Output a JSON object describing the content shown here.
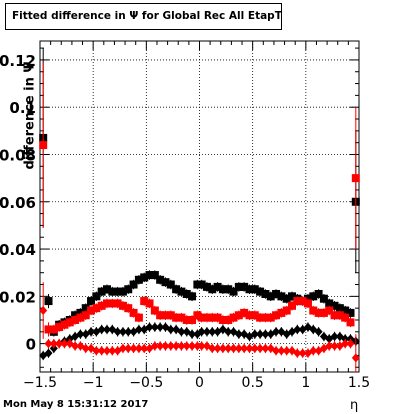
{
  "chart_data": {
    "type": "scatter",
    "title": "Fitted difference in  Ψ   for Global Rec All EtapT",
    "xlabel": "η",
    "ylabel": "difference in Ψ",
    "xlim": [
      -1.5,
      1.5
    ],
    "ylim": [
      -0.012,
      0.128
    ],
    "xticks": [
      "−1.5",
      "−1",
      "−0.5",
      "0",
      "0.5",
      "1",
      "1.5"
    ],
    "xtick_values": [
      -1.5,
      -1,
      -0.5,
      0,
      0.5,
      1,
      1.5
    ],
    "yticks": [
      "0",
      "0.02",
      "0.04",
      "0.06",
      "0.08",
      "0.1",
      "0.12"
    ],
    "ytick_values": [
      0,
      0.02,
      0.04,
      0.06,
      0.08,
      0.1,
      0.12
    ],
    "grid": true,
    "colors": {
      "black": "#000000",
      "red": "#ff0000"
    },
    "x": [
      -1.47,
      -1.42,
      -1.37,
      -1.32,
      -1.27,
      -1.22,
      -1.17,
      -1.12,
      -1.07,
      -1.02,
      -0.97,
      -0.92,
      -0.87,
      -0.82,
      -0.77,
      -0.72,
      -0.67,
      -0.62,
      -0.57,
      -0.52,
      -0.47,
      -0.42,
      -0.37,
      -0.32,
      -0.27,
      -0.22,
      -0.17,
      -0.12,
      -0.07,
      -0.02,
      0.02,
      0.07,
      0.12,
      0.17,
      0.22,
      0.27,
      0.32,
      0.37,
      0.42,
      0.47,
      0.52,
      0.57,
      0.62,
      0.67,
      0.72,
      0.77,
      0.82,
      0.87,
      0.92,
      0.97,
      1.02,
      1.07,
      1.12,
      1.17,
      1.22,
      1.27,
      1.32,
      1.37,
      1.42,
      1.47
    ],
    "series": [
      {
        "marker": "square",
        "color": "#000000",
        "values": [
          0.087,
          0.018,
          0.005,
          0.008,
          0.009,
          0.01,
          0.012,
          0.013,
          0.015,
          0.018,
          0.02,
          0.022,
          0.023,
          0.022,
          0.022,
          0.022,
          0.023,
          0.025,
          0.027,
          0.028,
          0.029,
          0.029,
          0.027,
          0.026,
          0.025,
          0.023,
          0.022,
          0.021,
          0.02,
          0.025,
          0.025,
          0.024,
          0.023,
          0.024,
          0.023,
          0.023,
          0.022,
          0.024,
          0.024,
          0.023,
          0.023,
          0.022,
          0.021,
          0.02,
          0.021,
          0.02,
          0.019,
          0.02,
          0.019,
          0.018,
          0.019,
          0.02,
          0.021,
          0.019,
          0.017,
          0.016,
          0.015,
          0.014,
          0.013,
          0.06
        ],
        "errors": [
          0.038,
          0.003,
          0.002,
          0.002,
          0.002,
          0.002,
          0.002,
          0.002,
          0.002,
          0.002,
          0.002,
          0.002,
          0.002,
          0.002,
          0.002,
          0.002,
          0.002,
          0.002,
          0.002,
          0.002,
          0.002,
          0.002,
          0.002,
          0.002,
          0.002,
          0.002,
          0.002,
          0.002,
          0.002,
          0.002,
          0.002,
          0.002,
          0.002,
          0.002,
          0.002,
          0.002,
          0.002,
          0.002,
          0.002,
          0.002,
          0.002,
          0.002,
          0.002,
          0.002,
          0.002,
          0.002,
          0.002,
          0.002,
          0.002,
          0.002,
          0.002,
          0.002,
          0.002,
          0.002,
          0.002,
          0.002,
          0.002,
          0.002,
          0.002,
          0.03
        ]
      },
      {
        "marker": "square",
        "color": "#ff0000",
        "values": [
          0.084,
          0.006,
          0.006,
          0.007,
          0.008,
          0.009,
          0.01,
          0.011,
          0.012,
          0.014,
          0.015,
          0.016,
          0.017,
          0.017,
          0.017,
          0.016,
          0.015,
          0.013,
          0.011,
          0.018,
          0.017,
          0.014,
          0.012,
          0.012,
          0.012,
          0.011,
          0.011,
          0.01,
          0.01,
          0.012,
          0.011,
          0.011,
          0.011,
          0.011,
          0.01,
          0.01,
          0.011,
          0.012,
          0.013,
          0.012,
          0.012,
          0.011,
          0.011,
          0.011,
          0.012,
          0.013,
          0.014,
          0.016,
          0.018,
          0.018,
          0.017,
          0.014,
          0.013,
          0.013,
          0.014,
          0.012,
          0.012,
          0.011,
          0.009,
          0.07
        ],
        "errors": [
          0.035,
          0.003,
          0.002,
          0.002,
          0.002,
          0.002,
          0.002,
          0.002,
          0.002,
          0.002,
          0.002,
          0.002,
          0.002,
          0.002,
          0.002,
          0.002,
          0.002,
          0.002,
          0.002,
          0.002,
          0.002,
          0.002,
          0.002,
          0.002,
          0.002,
          0.002,
          0.002,
          0.002,
          0.002,
          0.002,
          0.002,
          0.002,
          0.002,
          0.002,
          0.002,
          0.002,
          0.002,
          0.002,
          0.002,
          0.002,
          0.002,
          0.002,
          0.002,
          0.002,
          0.002,
          0.002,
          0.002,
          0.002,
          0.002,
          0.002,
          0.002,
          0.002,
          0.002,
          0.002,
          0.002,
          0.002,
          0.002,
          0.002,
          0.002,
          0.03
        ]
      },
      {
        "marker": "diamond",
        "color": "#000000",
        "values": [
          -0.005,
          -0.004,
          -0.002,
          0.0,
          0.001,
          0.002,
          0.003,
          0.004,
          0.004,
          0.005,
          0.005,
          0.006,
          0.006,
          0.006,
          0.005,
          0.005,
          0.005,
          0.005,
          0.006,
          0.006,
          0.007,
          0.007,
          0.007,
          0.007,
          0.006,
          0.006,
          0.005,
          0.005,
          0.004,
          0.004,
          0.005,
          0.005,
          0.005,
          0.005,
          0.006,
          0.005,
          0.005,
          0.004,
          0.004,
          0.003,
          0.004,
          0.004,
          0.004,
          0.004,
          0.005,
          0.005,
          0.004,
          0.005,
          0.006,
          0.006,
          0.007,
          0.006,
          0.005,
          0.003,
          0.002,
          0.003,
          0.003,
          0.002,
          0.002,
          0.001
        ],
        "errors": [
          0.002,
          0.002,
          0.002,
          0.002,
          0.002,
          0.002,
          0.002,
          0.002,
          0.002,
          0.002,
          0.002,
          0.002,
          0.002,
          0.002,
          0.002,
          0.002,
          0.002,
          0.002,
          0.002,
          0.002,
          0.002,
          0.002,
          0.002,
          0.002,
          0.002,
          0.002,
          0.002,
          0.002,
          0.002,
          0.002,
          0.002,
          0.002,
          0.002,
          0.002,
          0.002,
          0.002,
          0.002,
          0.002,
          0.002,
          0.002,
          0.002,
          0.002,
          0.002,
          0.002,
          0.002,
          0.002,
          0.002,
          0.002,
          0.002,
          0.002,
          0.002,
          0.002,
          0.002,
          0.002,
          0.002,
          0.002,
          0.002,
          0.002,
          0.002,
          0.002
        ]
      },
      {
        "marker": "diamond",
        "color": "#ff0000",
        "values": [
          0.014,
          0.0,
          0.0,
          0.0,
          0.0,
          0.0,
          -0.001,
          -0.001,
          -0.002,
          -0.002,
          -0.003,
          -0.003,
          -0.003,
          -0.003,
          -0.003,
          -0.002,
          -0.002,
          -0.002,
          -0.002,
          -0.002,
          -0.002,
          -0.001,
          -0.001,
          -0.001,
          -0.001,
          -0.001,
          -0.001,
          -0.001,
          -0.001,
          -0.001,
          -0.001,
          -0.001,
          -0.002,
          -0.002,
          -0.002,
          -0.002,
          -0.002,
          -0.002,
          -0.002,
          -0.002,
          -0.002,
          -0.002,
          -0.002,
          -0.002,
          -0.003,
          -0.003,
          -0.003,
          -0.003,
          -0.004,
          -0.004,
          -0.004,
          -0.003,
          -0.003,
          -0.002,
          -0.001,
          -0.001,
          -0.001,
          0.0,
          0.0,
          -0.006
        ],
        "errors": [
          0.012,
          0.002,
          0.002,
          0.002,
          0.002,
          0.002,
          0.002,
          0.002,
          0.002,
          0.002,
          0.002,
          0.002,
          0.002,
          0.002,
          0.002,
          0.002,
          0.002,
          0.002,
          0.002,
          0.002,
          0.002,
          0.002,
          0.002,
          0.002,
          0.002,
          0.002,
          0.002,
          0.002,
          0.002,
          0.002,
          0.002,
          0.002,
          0.002,
          0.002,
          0.002,
          0.002,
          0.002,
          0.002,
          0.002,
          0.002,
          0.002,
          0.002,
          0.002,
          0.002,
          0.002,
          0.002,
          0.002,
          0.002,
          0.002,
          0.002,
          0.002,
          0.002,
          0.002,
          0.002,
          0.002,
          0.002,
          0.002,
          0.002,
          0.002,
          0.01
        ]
      }
    ]
  },
  "footer": {
    "timestamp": "Mon May  8 15:31:12 2017"
  }
}
